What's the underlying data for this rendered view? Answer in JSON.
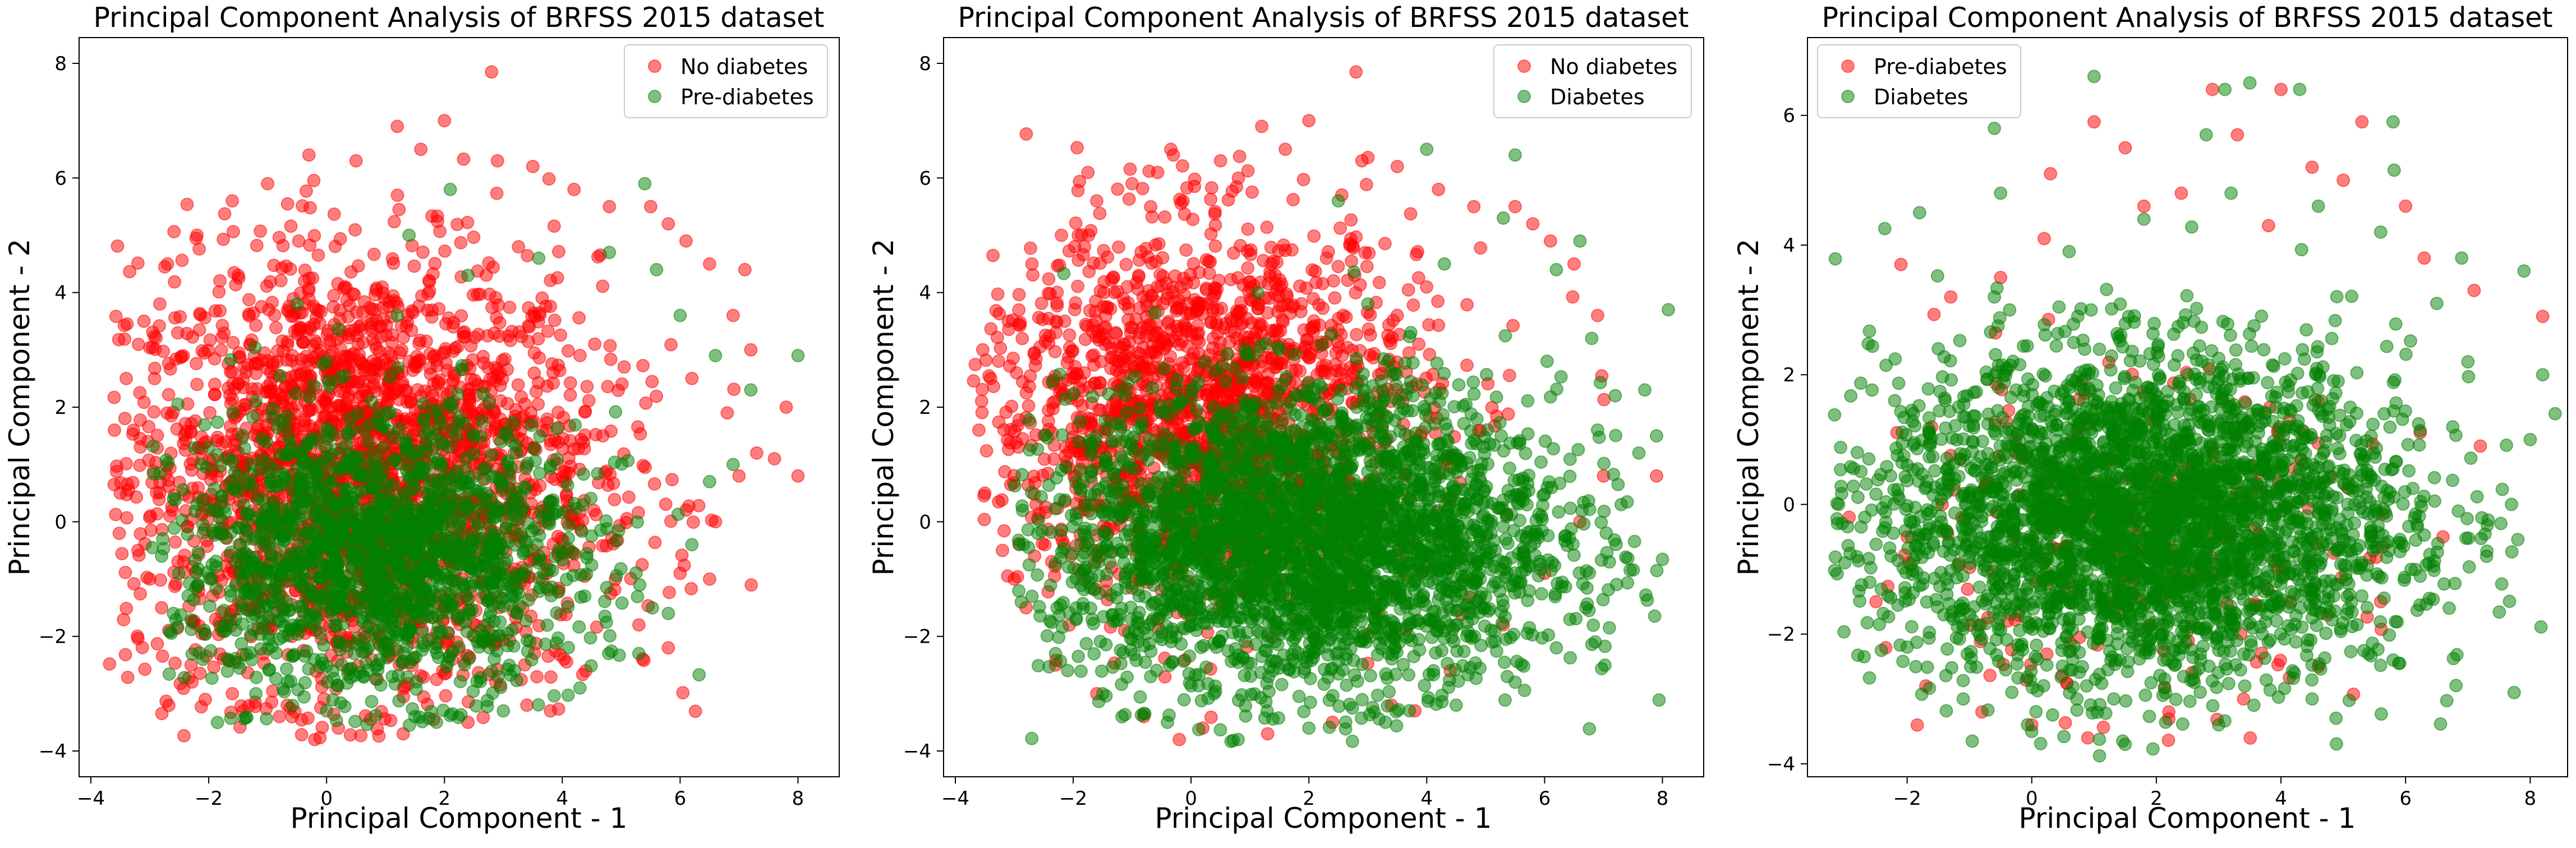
{
  "figure": {
    "background": "#ffffff"
  },
  "colors": {
    "red": "#ff0000",
    "green": "#008000"
  },
  "chart_data": [
    {
      "type": "scatter",
      "title": "Principal Component Analysis of BRFSS 2015 dataset",
      "xlabel": "Principal Component - 1",
      "ylabel": "Principal Component - 2",
      "xlim": [
        -4.2,
        8.7
      ],
      "ylim": [
        -4.45,
        8.45
      ],
      "xticks": [
        -4,
        -2,
        0,
        2,
        4,
        6,
        8
      ],
      "yticks": [
        -4,
        -2,
        0,
        2,
        4,
        6,
        8
      ],
      "legend_position": "upper right",
      "series": [
        {
          "name": "No diabetes",
          "color": "#ff0000",
          "opacity": 0.5,
          "points": [
            [
              2.8,
              7.85
            ],
            [
              1.2,
              6.9
            ],
            [
              2.0,
              7.0
            ],
            [
              -0.3,
              6.4
            ],
            [
              3.5,
              6.2
            ],
            [
              4.2,
              5.8
            ],
            [
              5.5,
              5.5
            ],
            [
              -1.6,
              5.6
            ],
            [
              -2.2,
              5.0
            ],
            [
              -2.7,
              4.5
            ],
            [
              -3.1,
              3.5
            ],
            [
              -3.4,
              2.5
            ],
            [
              -3.6,
              1.6
            ],
            [
              -3.5,
              0.5
            ],
            [
              -3.2,
              -0.5
            ],
            [
              -2.8,
              -1.5
            ],
            [
              -2.3,
              -2.5
            ],
            [
              -1.6,
              -3.0
            ],
            [
              -0.8,
              -3.4
            ],
            [
              0.2,
              -3.6
            ],
            [
              1.3,
              -3.7
            ],
            [
              2.4,
              -3.5
            ],
            [
              3.4,
              -3.2
            ],
            [
              4.4,
              -2.6
            ],
            [
              5.3,
              -1.8
            ],
            [
              6.0,
              -0.9
            ],
            [
              6.6,
              0.0
            ],
            [
              7.0,
              0.8
            ],
            [
              7.3,
              1.2
            ],
            [
              7.6,
              1.1
            ],
            [
              8.0,
              0.8
            ],
            [
              7.8,
              2.0
            ],
            [
              7.2,
              3.0
            ],
            [
              6.5,
              4.5
            ],
            [
              5.8,
              5.2
            ],
            [
              6.9,
              3.6
            ],
            [
              6.2,
              2.5
            ],
            [
              6.8,
              1.9
            ],
            [
              -1.0,
              5.9
            ],
            [
              0.5,
              6.3
            ],
            [
              1.6,
              6.5
            ],
            [
              2.9,
              6.3
            ],
            [
              4.8,
              5.5
            ],
            [
              6.1,
              4.9
            ],
            [
              7.1,
              4.4
            ],
            [
              -3.0,
              -1.0
            ],
            [
              -0.2,
              -3.8
            ],
            [
              3.8,
              -3.3
            ],
            [
              5.8,
              -2.2
            ],
            [
              6.5,
              -1.0
            ]
          ]
        },
        {
          "name": "Pre-diabetes",
          "color": "#008000",
          "opacity": 0.5,
          "points": [
            [
              8.0,
              2.9
            ],
            [
              6.6,
              2.9
            ],
            [
              7.2,
              2.3
            ],
            [
              6.9,
              1.0
            ],
            [
              6.5,
              0.7
            ],
            [
              6.2,
              -0.4
            ],
            [
              5.8,
              -1.6
            ],
            [
              5.3,
              -2.3
            ],
            [
              4.3,
              -2.9
            ],
            [
              3.0,
              -3.3
            ],
            [
              1.5,
              -3.4
            ],
            [
              0.0,
              -3.3
            ],
            [
              -1.2,
              -3.0
            ],
            [
              -2.1,
              -2.4
            ],
            [
              -2.6,
              -1.6
            ],
            [
              -2.8,
              -0.6
            ],
            [
              -2.6,
              0.4
            ],
            [
              -2.0,
              1.3
            ],
            [
              -1.2,
              2.1
            ],
            [
              0.0,
              2.8
            ],
            [
              1.2,
              3.6
            ],
            [
              2.4,
              4.3
            ],
            [
              3.6,
              4.6
            ],
            [
              4.8,
              4.7
            ],
            [
              5.6,
              4.4
            ],
            [
              6.0,
              3.6
            ],
            [
              1.4,
              5.0
            ],
            [
              -0.5,
              3.8
            ],
            [
              2.1,
              5.8
            ],
            [
              5.4,
              5.9
            ]
          ]
        }
      ]
    },
    {
      "type": "scatter",
      "title": "Principal Component Analysis of BRFSS 2015 dataset",
      "xlabel": "Principal Component - 1",
      "ylabel": "Principal Component - 2",
      "xlim": [
        -4.2,
        8.7
      ],
      "ylim": [
        -4.45,
        8.45
      ],
      "xticks": [
        -4,
        -2,
        0,
        2,
        4,
        6,
        8
      ],
      "yticks": [
        -4,
        -2,
        0,
        2,
        4,
        6,
        8
      ],
      "legend_position": "upper right",
      "series": [
        {
          "name": "No diabetes",
          "color": "#ff0000",
          "opacity": 0.5,
          "points": [
            [
              2.8,
              7.85
            ],
            [
              1.2,
              6.9
            ],
            [
              2.0,
              7.0
            ],
            [
              -0.3,
              6.4
            ],
            [
              3.5,
              6.2
            ],
            [
              4.2,
              5.8
            ],
            [
              5.5,
              5.5
            ],
            [
              -1.6,
              5.6
            ],
            [
              -2.2,
              5.0
            ],
            [
              -2.7,
              4.5
            ],
            [
              -3.1,
              3.5
            ],
            [
              -3.4,
              2.5
            ],
            [
              -3.6,
              1.6
            ],
            [
              -3.5,
              0.5
            ],
            [
              -3.2,
              -0.5
            ],
            [
              -2.8,
              -1.5
            ],
            [
              -2.3,
              -2.5
            ],
            [
              -1.6,
              -3.0
            ],
            [
              -0.8,
              -3.4
            ],
            [
              0.2,
              -3.6
            ],
            [
              1.3,
              -3.7
            ],
            [
              2.4,
              -3.5
            ],
            [
              3.4,
              -3.2
            ],
            [
              4.4,
              -2.6
            ],
            [
              5.3,
              -1.8
            ],
            [
              6.0,
              -0.9
            ],
            [
              6.6,
              0.0
            ],
            [
              7.0,
              0.8
            ],
            [
              6.5,
              4.5
            ],
            [
              5.8,
              5.2
            ],
            [
              6.9,
              3.6
            ],
            [
              -1.0,
              5.9
            ],
            [
              0.5,
              6.3
            ],
            [
              1.6,
              6.5
            ],
            [
              2.9,
              6.3
            ],
            [
              4.8,
              5.5
            ],
            [
              6.1,
              4.9
            ],
            [
              -3.0,
              -1.0
            ],
            [
              -0.2,
              -3.8
            ],
            [
              3.8,
              -3.3
            ],
            [
              7.9,
              0.8
            ]
          ]
        },
        {
          "name": "Diabetes",
          "color": "#008000",
          "opacity": 0.5,
          "points": [
            [
              8.1,
              3.7
            ],
            [
              7.9,
              1.5
            ],
            [
              7.6,
              1.2
            ],
            [
              7.3,
              0.3
            ],
            [
              7.1,
              -0.7
            ],
            [
              6.7,
              -1.5
            ],
            [
              6.2,
              -2.2
            ],
            [
              5.5,
              -2.8
            ],
            [
              4.5,
              -3.2
            ],
            [
              3.3,
              -3.5
            ],
            [
              2.0,
              -3.6
            ],
            [
              0.8,
              -3.8
            ],
            [
              -0.4,
              -3.5
            ],
            [
              -1.5,
              -3.0
            ],
            [
              -2.3,
              -2.3
            ],
            [
              -2.7,
              -1.3
            ],
            [
              -2.6,
              -0.2
            ],
            [
              -2.2,
              0.9
            ],
            [
              -1.2,
              1.7
            ],
            [
              0.0,
              2.3
            ],
            [
              1.5,
              3.0
            ],
            [
              3.0,
              3.8
            ],
            [
              4.3,
              4.5
            ],
            [
              5.3,
              5.3
            ],
            [
              6.2,
              4.4
            ],
            [
              6.8,
              3.2
            ],
            [
              7.2,
              2.2
            ],
            [
              4.0,
              6.5
            ],
            [
              5.5,
              6.4
            ],
            [
              2.5,
              5.6
            ],
            [
              6.6,
              4.9
            ],
            [
              7.7,
              2.3
            ],
            [
              6.9,
              1.6
            ]
          ]
        }
      ]
    },
    {
      "type": "scatter",
      "title": "Principal Component Analysis of BRFSS 2015 dataset",
      "xlabel": "Principal Component - 1",
      "ylabel": "Principal Component - 2",
      "xlim": [
        -3.6,
        8.6
      ],
      "ylim": [
        -4.2,
        7.2
      ],
      "xticks": [
        -2,
        0,
        2,
        4,
        6,
        8
      ],
      "yticks": [
        -4,
        -2,
        0,
        2,
        4,
        6
      ],
      "legend_position": "upper left",
      "series": [
        {
          "name": "Pre-diabetes",
          "color": "#ff0000",
          "opacity": 0.5,
          "points": [
            [
              -2.1,
              3.7
            ],
            [
              -1.3,
              3.2
            ],
            [
              -0.5,
              3.5
            ],
            [
              0.2,
              4.1
            ],
            [
              1.0,
              5.9
            ],
            [
              1.5,
              5.5
            ],
            [
              2.4,
              4.8
            ],
            [
              2.9,
              6.4
            ],
            [
              3.3,
              5.7
            ],
            [
              4.0,
              6.4
            ],
            [
              4.5,
              5.2
            ],
            [
              5.0,
              5.0
            ],
            [
              5.3,
              5.9
            ],
            [
              6.3,
              3.8
            ],
            [
              7.1,
              3.3
            ],
            [
              8.2,
              2.9
            ],
            [
              -2.0,
              -0.5
            ],
            [
              -2.5,
              -1.5
            ],
            [
              -1.7,
              -2.8
            ],
            [
              -0.8,
              -3.2
            ],
            [
              0.0,
              -3.4
            ],
            [
              0.9,
              -3.6
            ],
            [
              2.2,
              -3.2
            ],
            [
              3.4,
              -3.0
            ],
            [
              4.6,
              -2.5
            ],
            [
              5.6,
              -1.5
            ],
            [
              6.6,
              -0.5
            ],
            [
              7.2,
              0.9
            ],
            [
              0.3,
              5.1
            ],
            [
              6.0,
              4.6
            ],
            [
              3.8,
              4.3
            ],
            [
              1.8,
              4.6
            ]
          ]
        },
        {
          "name": "Diabetes",
          "color": "#008000",
          "opacity": 0.5,
          "points": [
            [
              1.0,
              6.6
            ],
            [
              3.5,
              6.5
            ],
            [
              4.3,
              6.4
            ],
            [
              3.1,
              6.4
            ],
            [
              2.8,
              5.7
            ],
            [
              -0.6,
              5.8
            ],
            [
              5.8,
              5.9
            ],
            [
              -0.5,
              4.8
            ],
            [
              6.9,
              3.8
            ],
            [
              7.9,
              3.6
            ],
            [
              8.2,
              2.0
            ],
            [
              8.4,
              1.4
            ],
            [
              8.0,
              1.0
            ],
            [
              7.7,
              0.0
            ],
            [
              7.3,
              -0.8
            ],
            [
              6.7,
              -1.6
            ],
            [
              5.8,
              -2.4
            ],
            [
              4.5,
              -3.0
            ],
            [
              3.0,
              -3.4
            ],
            [
              1.5,
              -3.7
            ],
            [
              0.0,
              -3.5
            ],
            [
              -1.1,
              -3.0
            ],
            [
              -2.0,
              -2.2
            ],
            [
              -2.6,
              -1.2
            ],
            [
              -3.1,
              0.0
            ],
            [
              -2.8,
              0.8
            ],
            [
              -2.2,
              1.6
            ],
            [
              -1.5,
              2.4
            ],
            [
              -0.6,
              3.2
            ],
            [
              0.6,
              3.9
            ],
            [
              1.8,
              4.4
            ],
            [
              3.2,
              4.8
            ],
            [
              4.6,
              4.6
            ],
            [
              5.6,
              4.2
            ],
            [
              6.5,
              3.1
            ],
            [
              7.0,
              2.2
            ],
            [
              -1.8,
              4.5
            ],
            [
              -3.0,
              -0.9
            ]
          ]
        }
      ]
    }
  ]
}
